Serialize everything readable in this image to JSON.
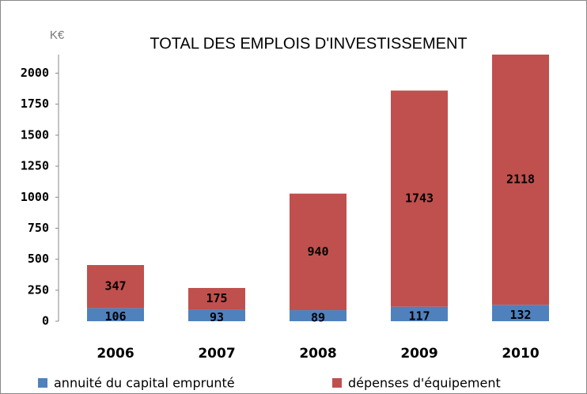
{
  "chart_data": {
    "type": "stacked_bar",
    "title": "TOTAL DES EMPLOIS D'INVESTISSEMENT",
    "unit_label": "K€",
    "categories": [
      "2006",
      "2007",
      "2008",
      "2009",
      "2010"
    ],
    "series": [
      {
        "name": "annuité du capital emprunté",
        "color": "#4f81bd",
        "values": [
          106,
          93,
          89,
          117,
          132
        ]
      },
      {
        "name": "dépenses d'équipement",
        "color": "#c0504d",
        "values": [
          347,
          175,
          940,
          1743,
          2118
        ]
      }
    ],
    "ylim": [
      0,
      2150
    ],
    "yticks": [
      0,
      250,
      500,
      750,
      1000,
      1250,
      1500,
      1750,
      2000
    ],
    "grid": false,
    "legend": "bottom"
  }
}
